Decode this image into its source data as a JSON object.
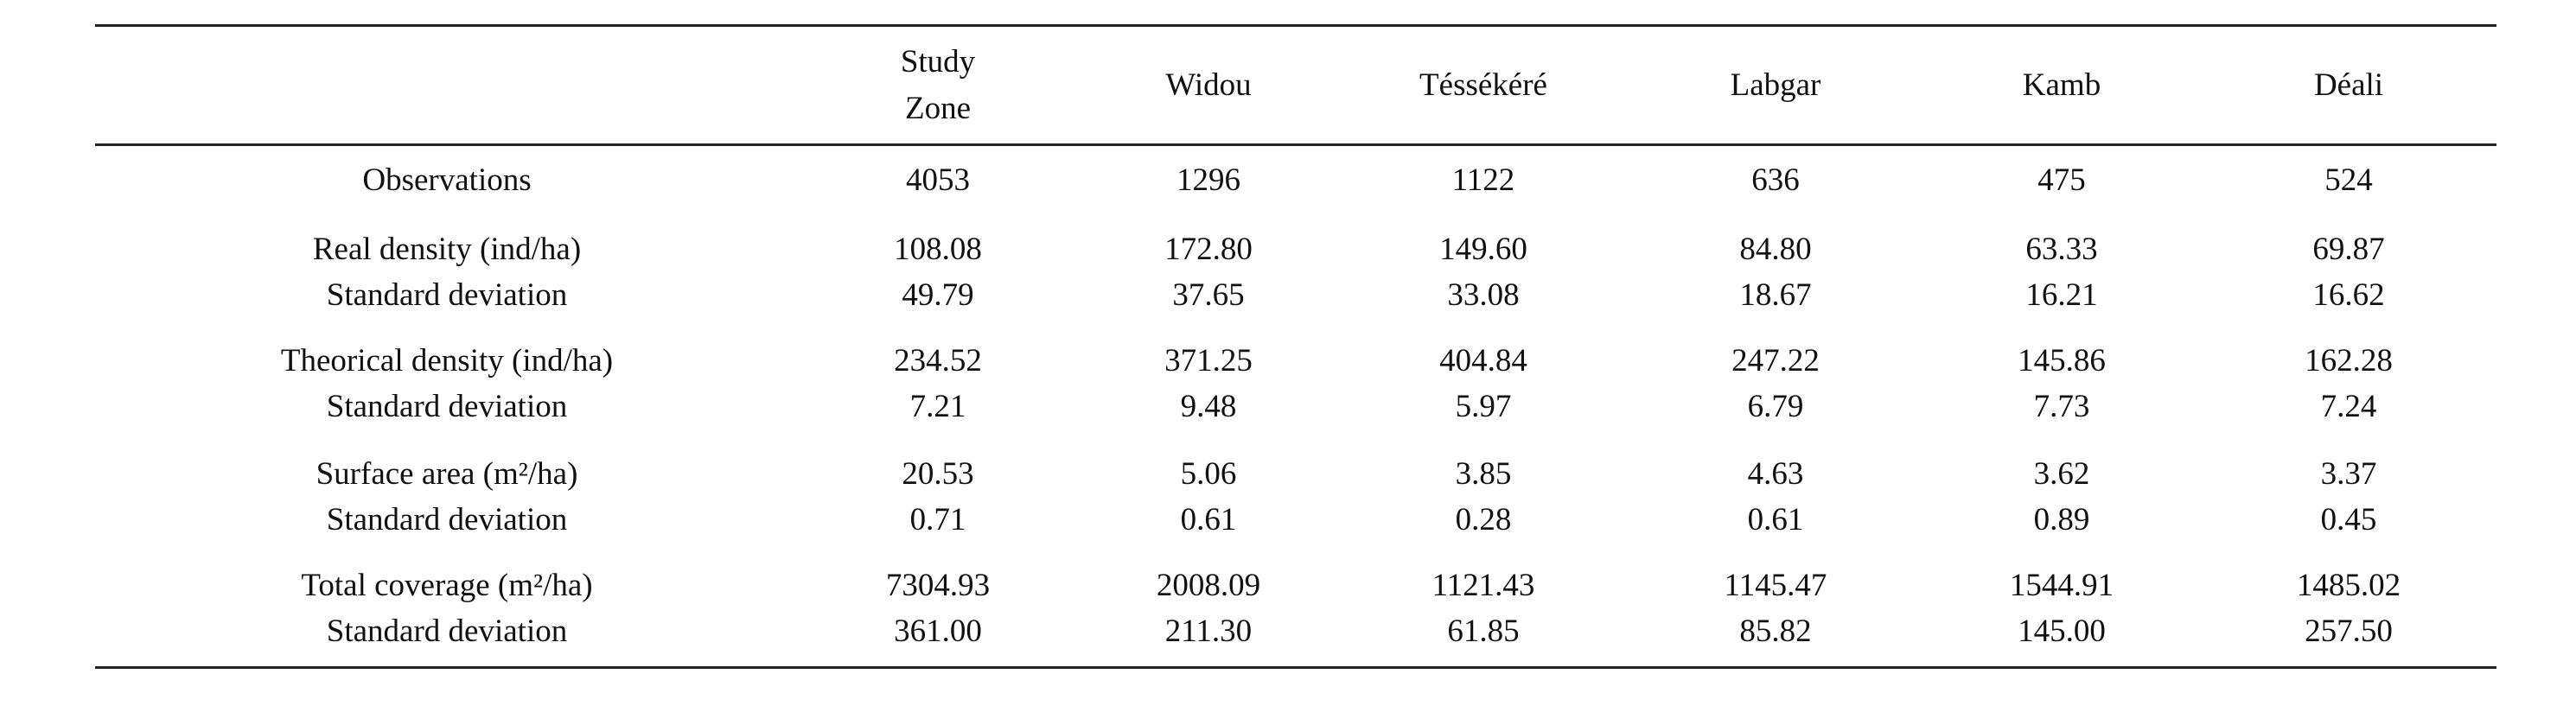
{
  "table": {
    "columns": [
      "Study Zone",
      "Widou",
      "Téssékéré",
      "Labgar",
      "Kamb",
      "Déali"
    ],
    "rows": [
      {
        "label": "Observations",
        "values": [
          "4053",
          "1296",
          "1122",
          "636",
          "475",
          "524"
        ]
      },
      {
        "label": "Real density (ind/ha)",
        "values": [
          "108.08",
          "172.80",
          "149.60",
          "84.80",
          "63.33",
          "69.87"
        ]
      },
      {
        "label": "Standard deviation",
        "values": [
          "49.79",
          "37.65",
          "33.08",
          "18.67",
          "16.21",
          "16.62"
        ]
      },
      {
        "label": "Theorical density (ind/ha)",
        "values": [
          "234.52",
          "371.25",
          "404.84",
          "247.22",
          "145.86",
          "162.28"
        ]
      },
      {
        "label": "Standard deviation",
        "values": [
          "7.21",
          "9.48",
          "5.97",
          "6.79",
          "7.73",
          "7.24"
        ]
      },
      {
        "label": "Surface area (m²/ha)",
        "values": [
          "20.53",
          "5.06",
          "3.85",
          "4.63",
          "3.62",
          "3.37"
        ]
      },
      {
        "label": "Standard deviation",
        "values": [
          "0.71",
          "0.61",
          "0.28",
          "0.61",
          "0.89",
          "0.45"
        ]
      },
      {
        "label": "Total coverage (m²/ha)",
        "values": [
          "7304.93",
          "2008.09",
          "1121.43",
          "1145.47",
          "1544.91",
          "1485.02"
        ]
      },
      {
        "label": "Standard deviation",
        "values": [
          "361.00",
          "211.30",
          "61.85",
          "85.82",
          "145.00",
          "257.50"
        ]
      }
    ]
  }
}
